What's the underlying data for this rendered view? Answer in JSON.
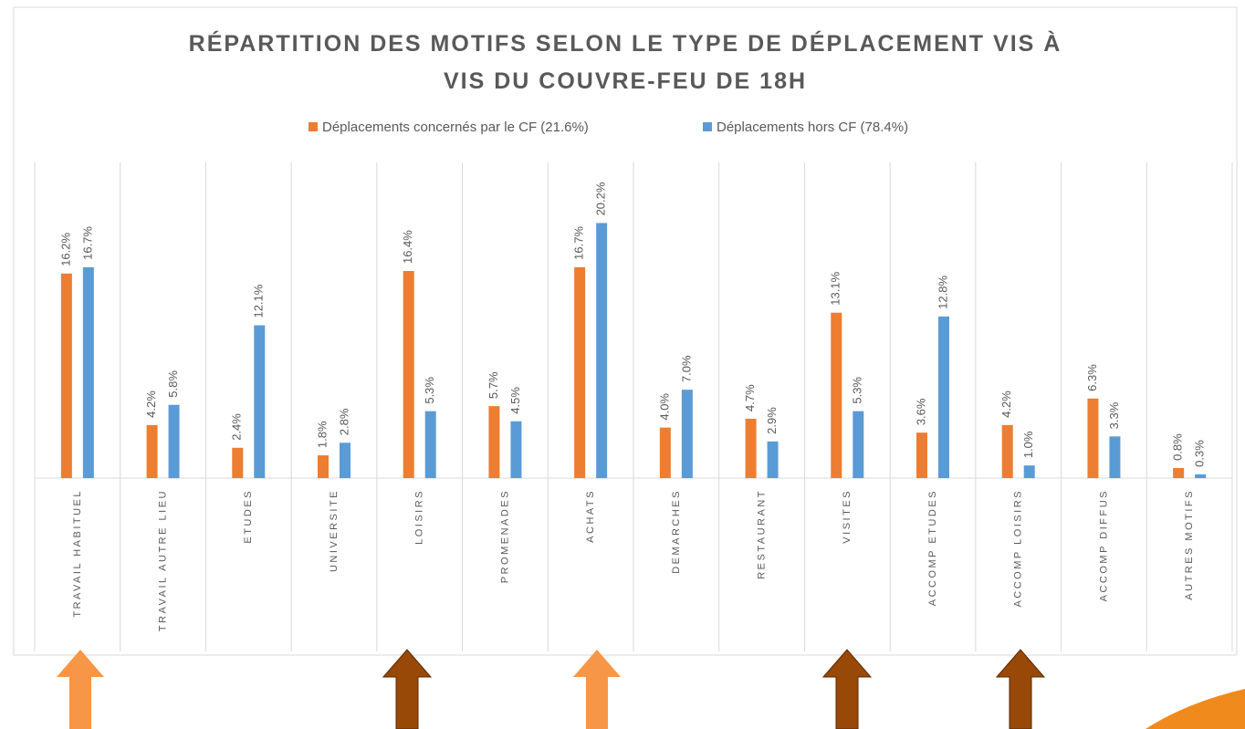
{
  "chart_data": {
    "type": "bar",
    "title": [
      "RÉPARTITION DES MOTIFS SELON LE TYPE DE DÉPLACEMENT VIS À",
      "VIS DU COUVRE-FEU DE 18H"
    ],
    "categories": [
      "TRAVAIL HABITUEL",
      "TRAVAIL AUTRE LIEU",
      "ETUDES",
      "UNIVERSITE",
      "LOISIRS",
      "PROMENADES",
      "ACHATS",
      "DEMARCHES",
      "RESTAURANT",
      "VISITES",
      "ACCOMP ETUDES",
      "ACCOMP LOISIRS",
      "ACCOMP DIFFUS",
      "AUTRES MOTIFS"
    ],
    "series": [
      {
        "name": "Déplacements concernés par le CF (21.6%)",
        "color": "#ed7d31",
        "values": [
          16.2,
          4.2,
          2.4,
          1.8,
          16.4,
          5.7,
          16.7,
          4.0,
          4.7,
          13.1,
          3.6,
          4.2,
          6.3,
          0.8
        ],
        "value_labels": [
          "16.2%",
          "4.2%",
          "2.4%",
          "1.8%",
          "16.4%",
          "5.7%",
          "16.7%",
          "4.0%",
          "4.7%",
          "13.1%",
          "3.6%",
          "4.2%",
          "6.3%",
          "0.8%"
        ]
      },
      {
        "name": "Déplacements hors CF (78.4%)",
        "color": "#5b9bd5",
        "values": [
          16.7,
          5.8,
          12.1,
          2.8,
          5.3,
          4.5,
          20.2,
          7.0,
          2.9,
          5.3,
          12.8,
          1.0,
          3.3,
          0.3
        ],
        "value_labels": [
          "16.7%",
          "5.8%",
          "12.1%",
          "2.8%",
          "5.3%",
          "4.5%",
          "20.2%",
          "7.0%",
          "2.9%",
          "5.3%",
          "12.8%",
          "1.0%",
          "3.3%",
          "0.3%"
        ]
      }
    ],
    "ylim": [
      0,
      25
    ]
  }
}
